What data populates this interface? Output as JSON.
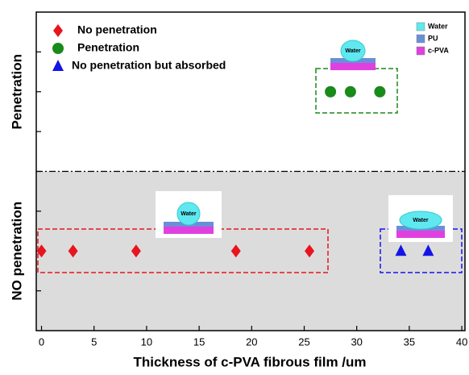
{
  "chart_data": {
    "type": "scatter",
    "xlabel": "Thickness of c-PVA fibrous film /um",
    "ylabels": [
      "Penetration",
      "NO penetration"
    ],
    "xlim": [
      -0.5,
      40.3
    ],
    "ylim": [
      0,
      8
    ],
    "xticks": [
      0,
      5,
      10,
      15,
      20,
      25,
      30,
      35,
      40
    ],
    "yticks": [
      1,
      2,
      3,
      4,
      5,
      6,
      7
    ],
    "divider": 4,
    "series": [
      {
        "name": "No penetration",
        "color": "#e8141e",
        "marker": "diamond",
        "x": [
          0,
          3,
          9,
          18.5,
          25.5
        ],
        "values": [
          2,
          2,
          2,
          2,
          2
        ]
      },
      {
        "name": "Penetration",
        "color": "#1a8a1a",
        "marker": "circle",
        "x": [
          27.5,
          29.4,
          32.2
        ],
        "values": [
          6,
          6,
          6
        ]
      },
      {
        "name": "No penetration but absorbed",
        "color": "#1414e6",
        "marker": "triangle",
        "x": [
          34.2,
          36.8
        ],
        "values": [
          2,
          2
        ]
      }
    ],
    "material_legend": [
      {
        "name": "Water",
        "color": "#5fe8f0"
      },
      {
        "name": "PU",
        "color": "#6a8fd8"
      },
      {
        "name": "c-PVA",
        "color": "#e040e0"
      }
    ],
    "droplet_label": "Water"
  }
}
